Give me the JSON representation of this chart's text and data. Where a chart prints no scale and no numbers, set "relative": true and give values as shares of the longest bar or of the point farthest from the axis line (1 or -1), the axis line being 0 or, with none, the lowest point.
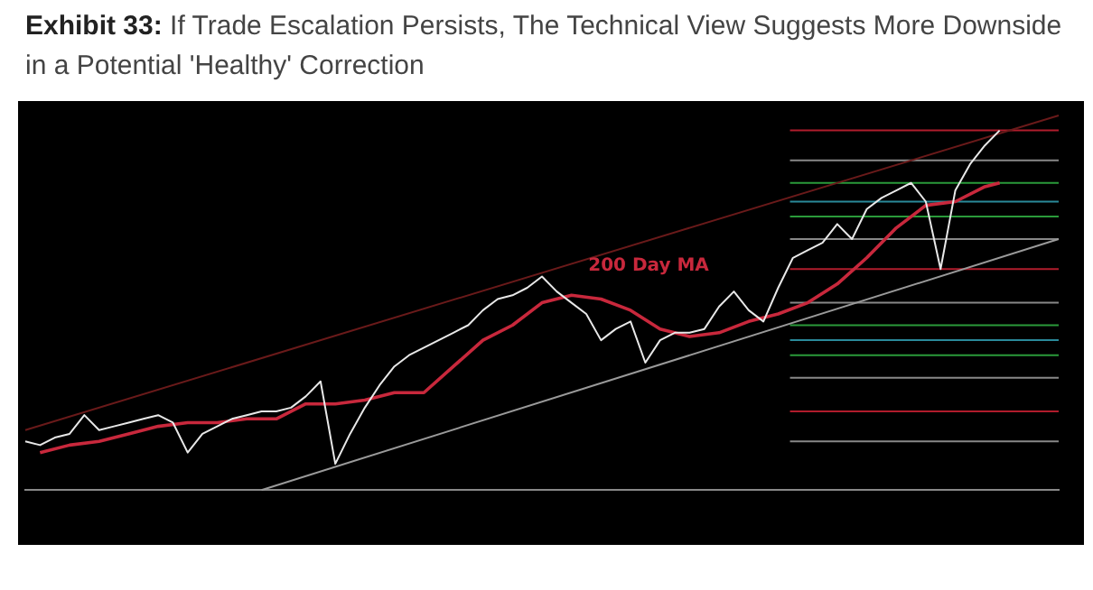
{
  "chart_data": {
    "type": "line",
    "title": "Exhibit 33: If Trade Escalation Persists, The Technical View Suggests More Downside in a Potential 'Healthy' Correction",
    "relative": true,
    "legend": false,
    "grid": false,
    "marker": "none",
    "categories": [
      null,
      null,
      null,
      null,
      null,
      null,
      null,
      null,
      null,
      null,
      null,
      null,
      null,
      null,
      null,
      null,
      null,
      null,
      null,
      null,
      null,
      null,
      null,
      null,
      null,
      null,
      null,
      null,
      null,
      null,
      null,
      null,
      null,
      null,
      null,
      null,
      null,
      null,
      null,
      null,
      null,
      null,
      null,
      null,
      null,
      null,
      null,
      null,
      null,
      null,
      null,
      null,
      null,
      null,
      null,
      null,
      null,
      null,
      null,
      null,
      null,
      null,
      null,
      null,
      null,
      null,
      null,
      null,
      null,
      null,
      null
    ],
    "series": [
      {
        "color": "#e8e8e8",
        "values": [
          0.13,
          0.12,
          0.14,
          0.15,
          0.2,
          0.16,
          0.17,
          0.18,
          0.19,
          0.2,
          0.18,
          0.1,
          0.15,
          0.17,
          0.19,
          0.2,
          0.21,
          0.21,
          0.22,
          0.25,
          0.29,
          0.07,
          0.15,
          0.22,
          0.28,
          0.33,
          0.36,
          0.38,
          0.4,
          0.42,
          0.44,
          0.48,
          0.51,
          0.52,
          0.54,
          0.57,
          0.53,
          0.5,
          0.47,
          0.4,
          0.43,
          0.45,
          0.34,
          0.4,
          0.42,
          0.42,
          0.43,
          0.49,
          0.53,
          0.48,
          0.45,
          0.54,
          0.62,
          0.64,
          0.66,
          0.71,
          0.67,
          0.75,
          0.78,
          0.8,
          0.82,
          0.77,
          0.59,
          0.8,
          0.87,
          0.92,
          0.96,
          null,
          null,
          null,
          null
        ]
      },
      {
        "name": "200 Day MA",
        "color": "#c8283c",
        "values": [
          null,
          0.1,
          null,
          0.12,
          null,
          0.13,
          null,
          0.15,
          null,
          0.17,
          null,
          0.18,
          null,
          0.18,
          null,
          0.19,
          null,
          0.19,
          null,
          0.23,
          null,
          0.23,
          null,
          0.24,
          null,
          0.26,
          null,
          0.26,
          null,
          0.33,
          null,
          0.4,
          null,
          0.44,
          null,
          0.5,
          null,
          0.52,
          null,
          0.51,
          null,
          0.48,
          null,
          0.43,
          null,
          0.41,
          null,
          0.42,
          null,
          0.45,
          null,
          0.47,
          null,
          0.5,
          null,
          0.55,
          null,
          0.62,
          null,
          0.7,
          null,
          0.76,
          null,
          0.77,
          null,
          0.81,
          0.82,
          null,
          null,
          null,
          null
        ]
      },
      {
        "color": "#6a1a1a",
        "values": [
          0.16,
          null,
          null,
          null,
          null,
          null,
          null,
          null,
          null,
          null,
          null,
          null,
          null,
          null,
          null,
          null,
          null,
          null,
          null,
          null,
          null,
          null,
          null,
          null,
          null,
          null,
          null,
          null,
          null,
          null,
          null,
          null,
          null,
          null,
          null,
          null,
          null,
          null,
          null,
          null,
          null,
          null,
          null,
          null,
          null,
          null,
          null,
          null,
          null,
          null,
          null,
          null,
          null,
          null,
          null,
          null,
          null,
          null,
          null,
          null,
          null,
          null,
          null,
          null,
          null,
          null,
          null,
          null,
          null,
          null,
          1
        ]
      },
      {
        "color": "#9a9a9a",
        "values": [
          null,
          null,
          null,
          null,
          null,
          null,
          null,
          null,
          null,
          null,
          null,
          null,
          null,
          null,
          null,
          null,
          0,
          null,
          null,
          null,
          null,
          null,
          null,
          null,
          null,
          null,
          null,
          null,
          null,
          null,
          null,
          null,
          null,
          null,
          null,
          null,
          null,
          null,
          null,
          null,
          null,
          null,
          null,
          null,
          null,
          null,
          null,
          null,
          null,
          null,
          null,
          null,
          null,
          null,
          null,
          null,
          null,
          null,
          null,
          null,
          null,
          null,
          null,
          null,
          null,
          null,
          null,
          null,
          null,
          null,
          0.67
        ]
      }
    ],
    "ref_lines": [
      {
        "axis": "y",
        "value": 0.96,
        "color": "#b01c2c"
      },
      {
        "axis": "y",
        "value": 0.88,
        "color": "#888888"
      },
      {
        "axis": "y",
        "value": 0.82,
        "color": "#2a9a3a"
      },
      {
        "axis": "y",
        "value": 0.77,
        "color": "#2a8a9a"
      },
      {
        "axis": "y",
        "value": 0.73,
        "color": "#2a9a3a"
      },
      {
        "axis": "y",
        "value": 0.67,
        "color": "#888888"
      },
      {
        "axis": "y",
        "value": 0.59,
        "color": "#b01c2c"
      },
      {
        "axis": "y",
        "value": 0.5,
        "color": "#888888"
      },
      {
        "axis": "y",
        "value": 0.44,
        "color": "#2a9a3a"
      },
      {
        "axis": "y",
        "value": 0.4,
        "color": "#2a8a9a"
      },
      {
        "axis": "y",
        "value": 0.36,
        "color": "#2a9a3a"
      },
      {
        "axis": "y",
        "value": 0.3,
        "color": "#888888"
      },
      {
        "axis": "y",
        "value": 0.21,
        "color": "#b01c2c"
      },
      {
        "axis": "y",
        "value": 0.13,
        "color": "#888888"
      }
    ]
  }
}
